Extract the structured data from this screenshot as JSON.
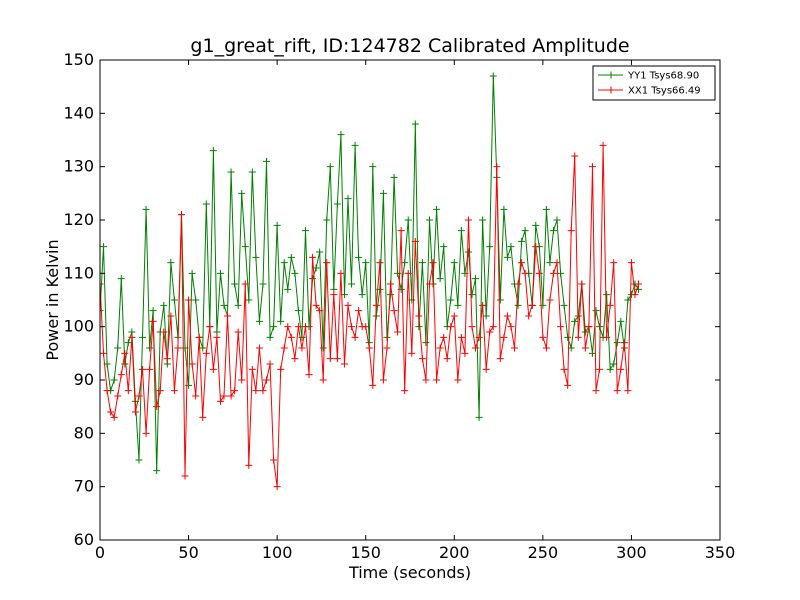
{
  "chart_data": {
    "type": "line",
    "title": "g1_great_rift, ID:124782 Calibrated Amplitude",
    "xlabel": "Time (seconds)",
    "ylabel": "Power in Kelvin",
    "xlim": [
      0,
      350
    ],
    "ylim": [
      60,
      150
    ],
    "xticks": [
      "0",
      "50",
      "100",
      "150",
      "200",
      "250",
      "300",
      "350"
    ],
    "yticks": [
      "60",
      "70",
      "80",
      "90",
      "100",
      "110",
      "120",
      "130",
      "140",
      "150"
    ],
    "grid": false,
    "legend_position": "top-right",
    "marker": "+",
    "series": [
      {
        "name": "YY1 Tsys68.90",
        "color": "#008000",
        "x": [
          0,
          2,
          4,
          6,
          8,
          10,
          12,
          14,
          16,
          18,
          20,
          22,
          24,
          26,
          28,
          30,
          32,
          34,
          36,
          38,
          40,
          42,
          44,
          46,
          48,
          50,
          52,
          54,
          56,
          58,
          60,
          62,
          64,
          66,
          68,
          70,
          72,
          74,
          76,
          78,
          80,
          82,
          84,
          86,
          88,
          90,
          92,
          94,
          96,
          98,
          100,
          102,
          104,
          106,
          108,
          110,
          112,
          114,
          116,
          118,
          120,
          122,
          124,
          126,
          128,
          130,
          132,
          134,
          136,
          138,
          140,
          142,
          144,
          146,
          148,
          150,
          152,
          154,
          156,
          158,
          160,
          162,
          164,
          166,
          168,
          170,
          172,
          174,
          176,
          178,
          180,
          182,
          184,
          186,
          188,
          190,
          192,
          194,
          196,
          198,
          200,
          202,
          204,
          206,
          208,
          210,
          212,
          214,
          216,
          218,
          220,
          222,
          224,
          226,
          228,
          230,
          232,
          234,
          236,
          238,
          240,
          242,
          244,
          246,
          248,
          250,
          252,
          254,
          256,
          258,
          260,
          262,
          264,
          266,
          268,
          270,
          272,
          274,
          276,
          278,
          280,
          282,
          284,
          286,
          288,
          290,
          292,
          294,
          296,
          298,
          300,
          302,
          304
        ],
        "values": [
          103,
          115,
          93,
          88,
          90,
          96,
          109,
          93,
          97,
          99,
          86,
          75,
          98,
          122,
          96,
          103,
          73,
          99,
          104,
          93,
          112,
          105,
          98,
          121,
          96,
          89,
          110,
          105,
          98,
          96,
          123,
          100,
          133,
          99,
          110,
          104,
          102,
          129,
          108,
          104,
          125,
          115,
          105,
          129,
          113,
          101,
          108,
          131,
          98,
          100,
          119,
          101,
          112,
          107,
          113,
          110,
          103,
          98,
          118,
          100,
          109,
          111,
          114,
          96,
          120,
          130,
          107,
          123,
          136,
          106,
          124,
          108,
          134,
          113,
          106,
          112,
          97,
          130,
          102,
          107,
          125,
          98,
          106,
          128,
          110,
          107,
          112,
          120,
          105,
          138,
          100,
          112,
          97,
          120,
          108,
          122,
          109,
          115,
          100,
          105,
          112,
          104,
          118,
          110,
          114,
          106,
          109,
          83,
          120,
          102,
          115,
          147,
          128,
          105,
          122,
          113,
          115,
          108,
          104,
          116,
          118,
          110,
          104,
          119,
          115,
          104,
          122,
          112,
          118,
          120,
          110,
          104,
          98,
          96,
          101,
          102,
          108,
          99,
          100,
          95,
          103,
          100,
          98,
          106,
          92,
          93,
          97,
          101,
          96,
          105,
          106,
          108,
          107
        ]
      },
      {
        "name": "XX1 Tsys66.49",
        "color": "#ff0000",
        "x": [
          0,
          2,
          4,
          6,
          8,
          10,
          12,
          14,
          16,
          18,
          20,
          22,
          24,
          26,
          28,
          30,
          32,
          34,
          36,
          38,
          40,
          42,
          44,
          46,
          48,
          50,
          52,
          54,
          56,
          58,
          60,
          62,
          64,
          66,
          68,
          70,
          72,
          74,
          76,
          78,
          80,
          82,
          84,
          86,
          88,
          90,
          92,
          94,
          96,
          98,
          100,
          102,
          104,
          106,
          108,
          110,
          112,
          114,
          116,
          118,
          120,
          122,
          124,
          126,
          128,
          130,
          132,
          134,
          136,
          138,
          140,
          142,
          144,
          146,
          148,
          150,
          152,
          154,
          156,
          158,
          160,
          162,
          164,
          166,
          168,
          170,
          172,
          174,
          176,
          178,
          180,
          182,
          184,
          186,
          188,
          190,
          192,
          194,
          196,
          198,
          200,
          202,
          204,
          206,
          208,
          210,
          212,
          214,
          216,
          218,
          220,
          222,
          224,
          226,
          228,
          230,
          232,
          234,
          236,
          238,
          240,
          242,
          244,
          246,
          248,
          250,
          252,
          254,
          256,
          258,
          260,
          262,
          264,
          266,
          268,
          270,
          272,
          274,
          276,
          278,
          280,
          282,
          284,
          286,
          288,
          290,
          292,
          294,
          296,
          298,
          300,
          302,
          304
        ],
        "values": [
          108,
          95,
          88,
          84,
          83,
          87,
          91,
          95,
          88,
          98,
          84,
          87,
          92,
          80,
          92,
          101,
          85,
          88,
          99,
          94,
          102,
          88,
          96,
          121,
          72,
          105,
          93,
          87,
          98,
          83,
          95,
          100,
          92,
          98,
          86,
          87,
          102,
          87,
          88,
          99,
          90,
          108,
          74,
          92,
          88,
          96,
          88,
          90,
          93,
          75,
          70,
          92,
          96,
          100,
          98,
          94,
          100,
          96,
          100,
          91,
          113,
          104,
          103,
          90,
          112,
          94,
          106,
          94,
          110,
          93,
          104,
          100,
          98,
          103,
          100,
          100,
          96,
          89,
          104,
          112,
          90,
          96,
          108,
          103,
          99,
          118,
          88,
          110,
          95,
          116,
          102,
          94,
          90,
          108,
          112,
          90,
          96,
          98,
          94,
          100,
          102,
          90,
          98,
          95,
          120,
          100,
          96,
          98,
          104,
          92,
          99,
          100,
          130,
          94,
          98,
          102,
          100,
          96,
          108,
          112,
          110,
          102,
          104,
          115,
          110,
          98,
          96,
          105,
          110,
          112,
          100,
          92,
          89,
          118,
          132,
          98,
          108,
          96,
          100,
          130,
          88,
          92,
          134,
          98,
          104,
          112,
          88,
          92,
          97,
          88,
          112,
          106,
          108
        ]
      }
    ]
  }
}
